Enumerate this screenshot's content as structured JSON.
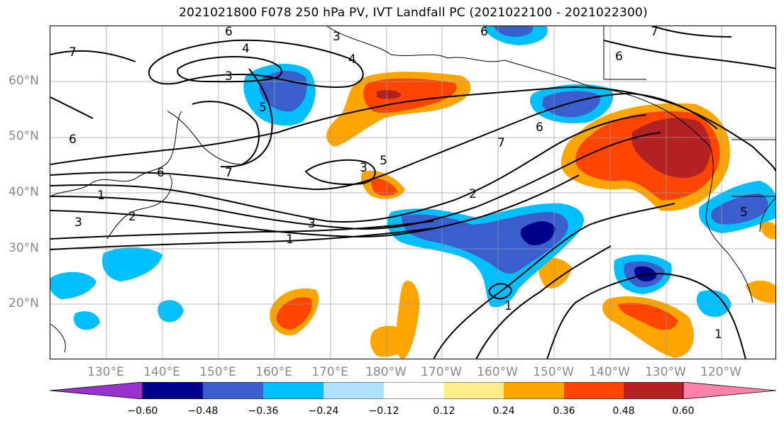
{
  "title": "2021021800 F078 250 hPa PV, IVT Landfall PC (2021022100 - 2021022300)",
  "lat_labels": [
    "60°N",
    "50°N",
    "40°N",
    "30°N",
    "20°N"
  ],
  "lon_labels": [
    "130°E",
    "140°E",
    "150°E",
    "160°E",
    "170°E",
    "180°W",
    "170°W",
    "160°W",
    "150°W",
    "140°W",
    "130°W",
    "120°W"
  ],
  "contour_labels": [
    "6",
    "4",
    "3",
    "7",
    "4",
    "5",
    "6",
    "7",
    "6",
    "3",
    "5",
    "6",
    "7",
    "1",
    "3",
    "2",
    "3",
    "1",
    "3",
    "2",
    "7",
    "6",
    "1",
    "1",
    "6",
    "5"
  ],
  "colorbar": {
    "ticks": [
      "−0.60",
      "−0.48",
      "−0.36",
      "−0.24",
      "−0.12",
      "0.12",
      "0.24",
      "0.36",
      "0.48",
      "0.60"
    ],
    "colors": [
      "#9932cc",
      "#00008b",
      "#3a5fcd",
      "#00bfff",
      "#b0e2ff",
      "#ffffff",
      "#ffec8b",
      "#ffa500",
      "#ff4500",
      "#b22222",
      "#ff82ab"
    ]
  }
}
